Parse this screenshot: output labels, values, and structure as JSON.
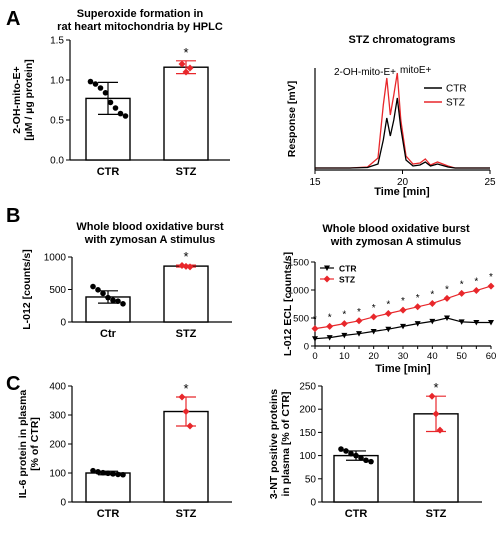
{
  "panel_labels": [
    "A",
    "B",
    "C"
  ],
  "colors": {
    "ctr": "#000000",
    "stz": "#e8272b"
  },
  "chart_data": [
    {
      "id": "a1",
      "type": "bar",
      "title": "Superoxide formation in rat heart mitochondria by HPLC",
      "title_lines": [
        "Superoxide formation in",
        "rat heart mitochondria by HPLC"
      ],
      "ylabel": "2-OH-mito-E+ [µM / µg protein]",
      "ylabel_lines": [
        "2-OH-mito-E+",
        "[µM / µg protein]"
      ],
      "ylim": [
        0,
        1.5
      ],
      "yticks": [
        0.0,
        0.5,
        1.0,
        1.5
      ],
      "ytick_labels": [
        "0.0",
        "0.5",
        "1.0",
        "1.5"
      ],
      "categories": [
        "CTR",
        "STZ"
      ],
      "values": [
        0.77,
        1.16
      ],
      "errors": [
        0.2,
        0.08
      ],
      "points": [
        [
          0.98,
          0.95,
          0.9,
          0.84,
          0.72,
          0.65,
          0.58,
          0.55
        ],
        [
          1.2,
          1.1,
          1.15
        ]
      ],
      "significance": [
        "",
        "*"
      ]
    },
    {
      "id": "a2",
      "type": "line",
      "title": "STZ chromatograms",
      "xlabel": "Time [min]",
      "ylabel": "Response [mV]",
      "xlim": [
        15,
        25
      ],
      "xticks": [
        15,
        20,
        25
      ],
      "peak_labels": [
        "2-OH-mito-E+",
        "mitoE+"
      ],
      "legend": [
        "CTR",
        "STZ"
      ],
      "legend_position": "top-right",
      "series": [
        {
          "name": "CTR",
          "x": [
            15,
            17,
            18,
            18.6,
            18.9,
            19.1,
            19.3,
            19.5,
            19.7,
            19.9,
            20.2,
            20.6,
            21,
            21.3,
            21.6,
            22,
            22.6,
            23,
            24,
            25
          ],
          "y": [
            2,
            2,
            2.5,
            6,
            30,
            52,
            34,
            50,
            72,
            42,
            10,
            4,
            5,
            8,
            4,
            6,
            3,
            2,
            2,
            2
          ]
        },
        {
          "name": "STZ",
          "x": [
            15,
            17,
            18,
            18.6,
            18.9,
            19.1,
            19.3,
            19.5,
            19.7,
            19.9,
            20.2,
            20.6,
            21,
            21.3,
            21.6,
            22,
            22.6,
            23,
            24,
            25
          ],
          "y": [
            2,
            2,
            3,
            12,
            65,
            92,
            55,
            75,
            97,
            50,
            14,
            6,
            7,
            11,
            5,
            8,
            4,
            2,
            2,
            2
          ]
        }
      ]
    },
    {
      "id": "b1",
      "type": "bar",
      "title": "Whole blood oxidative burst with zymosan A stimulus",
      "title_lines": [
        "Whole blood oxidative burst",
        "with zymosan A stimulus"
      ],
      "ylabel": "L-012 [counts/s]",
      "ylim": [
        0,
        1000
      ],
      "yticks": [
        0,
        500,
        1000
      ],
      "ytick_labels": [
        "0",
        "500",
        "1000"
      ],
      "categories": [
        "Ctr",
        "STZ"
      ],
      "values": [
        385,
        860
      ],
      "errors": [
        95,
        15
      ],
      "points": [
        [
          545,
          495,
          440,
          375,
          335,
          320,
          280
        ],
        [
          870,
          855,
          848
        ]
      ],
      "significance": [
        "",
        "*"
      ]
    },
    {
      "id": "b2",
      "type": "line",
      "title": "Whole blood oxidative burst with zymosan A stimulus",
      "title_lines": [
        "Whole blood oxidative burst",
        "with zymosan A stimulus"
      ],
      "xlabel": "Time [min]",
      "ylabel": "L-012 ECL [counts/s]",
      "xlim": [
        0,
        60
      ],
      "ylim": [
        0,
        1500
      ],
      "xticks": [
        0,
        5,
        10,
        15,
        20,
        25,
        30,
        35,
        40,
        45,
        50,
        55,
        60
      ],
      "yticks": [
        0,
        500,
        1000,
        1500
      ],
      "legend": [
        "CTR",
        "STZ"
      ],
      "legend_position": "top-left",
      "series": [
        {
          "name": "CTR",
          "x": [
            0,
            5,
            10,
            15,
            20,
            25,
            30,
            35,
            40,
            45,
            50,
            55,
            60
          ],
          "y": [
            130,
            150,
            190,
            220,
            260,
            300,
            350,
            400,
            440,
            500,
            430,
            420,
            420
          ]
        },
        {
          "name": "STZ",
          "x": [
            0,
            5,
            10,
            15,
            20,
            25,
            30,
            35,
            40,
            45,
            50,
            55,
            60
          ],
          "y": [
            310,
            350,
            400,
            450,
            520,
            580,
            640,
            700,
            760,
            850,
            940,
            990,
            1070
          ]
        }
      ],
      "significance_marks": [
        "*",
        "*",
        "*",
        "*",
        "*",
        "*",
        "*",
        "*",
        "*",
        "*",
        "*",
        "*",
        "*"
      ]
    },
    {
      "id": "c1",
      "type": "bar",
      "title": "",
      "ylabel": "IL-6 protein in plasma [% of CTR]",
      "ylabel_lines": [
        "IL-6 protein in plasma",
        "[% of CTR]"
      ],
      "ylim": [
        0,
        400
      ],
      "yticks": [
        0,
        100,
        200,
        300,
        400
      ],
      "ytick_labels": [
        "0",
        "100",
        "200",
        "300",
        "400"
      ],
      "categories": [
        "CTR",
        "STZ"
      ],
      "values": [
        100,
        312
      ],
      "errors": [
        6,
        50
      ],
      "points": [
        [
          108,
          104,
          101,
          99,
          97,
          95,
          94
        ],
        [
          362,
          312,
          262
        ]
      ],
      "significance": [
        "",
        "*"
      ]
    },
    {
      "id": "c2",
      "type": "bar",
      "title": "",
      "ylabel": "3-NT positive proteins in plasma [% of CTR]",
      "ylabel_lines": [
        "3-NT positive proteins",
        "in plasma [% of CTR]"
      ],
      "ylim": [
        0,
        250
      ],
      "yticks": [
        0,
        50,
        100,
        150,
        200,
        250
      ],
      "ytick_labels": [
        "0",
        "50",
        "100",
        "150",
        "200",
        "250"
      ],
      "categories": [
        "CTR",
        "STZ"
      ],
      "values": [
        100,
        190
      ],
      "errors": [
        10,
        38
      ],
      "points": [
        [
          114,
          110,
          104,
          100,
          95,
          90,
          87
        ],
        [
          228,
          190,
          155
        ]
      ],
      "significance": [
        "",
        "*"
      ]
    }
  ]
}
